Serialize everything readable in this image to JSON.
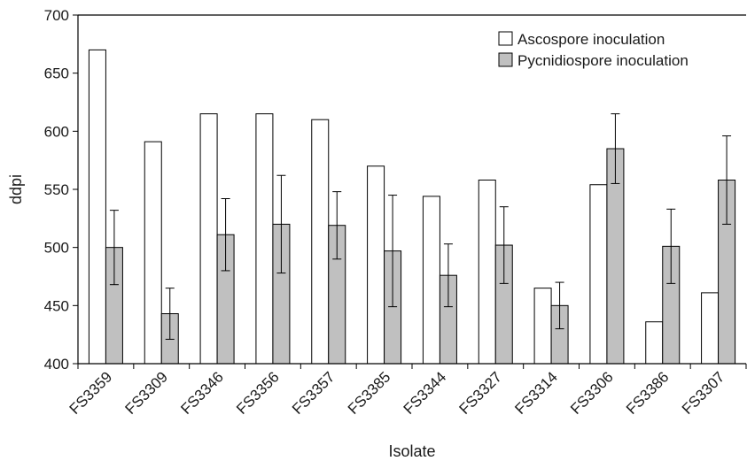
{
  "chart_data": {
    "type": "bar",
    "title": "",
    "xlabel": "Isolate",
    "ylabel": "ddpi",
    "ylim": [
      400,
      700
    ],
    "yticks": [
      400,
      450,
      500,
      550,
      600,
      650,
      700
    ],
    "grid": false,
    "legend_position": "top-right",
    "categories": [
      "FS3359",
      "FS3309",
      "FS3346",
      "FS3356",
      "FS3357",
      "FS3385",
      "FS3344",
      "FS3327",
      "FS3314",
      "FS3306",
      "FS3386",
      "FS3307"
    ],
    "series": [
      {
        "name": "Ascospore inoculation",
        "color": "#ffffff",
        "values": [
          670,
          591,
          615,
          615,
          610,
          570,
          544,
          558,
          465,
          554,
          436,
          461
        ],
        "errors": null
      },
      {
        "name": "Pycnidiospore inoculation",
        "color": "#c0c0c0",
        "values": [
          500,
          443,
          511,
          520,
          519,
          497,
          476,
          502,
          450,
          585,
          501,
          558
        ],
        "errors": [
          32,
          22,
          31,
          42,
          29,
          48,
          27,
          33,
          20,
          30,
          32,
          38
        ]
      }
    ]
  }
}
